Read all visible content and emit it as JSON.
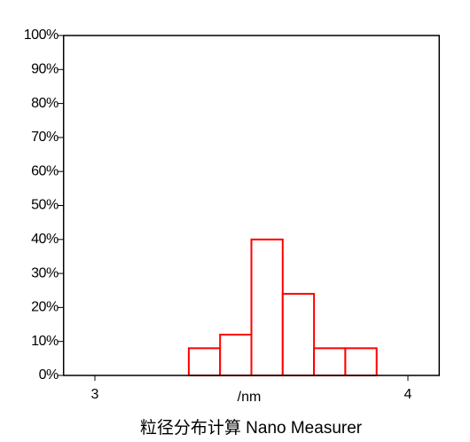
{
  "chart_data": {
    "type": "histogram",
    "x_label": "/nm",
    "caption": "粒径分布计算 Nano Measurer",
    "bins": [
      3.3,
      3.4,
      3.5,
      3.6,
      3.7,
      3.8,
      3.9
    ],
    "values": [
      8,
      12,
      40,
      24,
      8,
      8
    ],
    "color": "#ff0000",
    "xlim": [
      2.9,
      4.1
    ],
    "xticks": [
      3,
      4
    ],
    "ylim": [
      0,
      100
    ],
    "yticks": [
      {
        "value": 0,
        "label": "0%"
      },
      {
        "value": 10,
        "label": "10%"
      },
      {
        "value": 20,
        "label": "20%"
      },
      {
        "value": 30,
        "label": "30%"
      },
      {
        "value": 40,
        "label": "40%"
      },
      {
        "value": 50,
        "label": "50%"
      },
      {
        "value": 60,
        "label": "60%"
      },
      {
        "value": 70,
        "label": "70%"
      },
      {
        "value": 80,
        "label": "80%"
      },
      {
        "value": 90,
        "label": "90%"
      },
      {
        "value": 100,
        "label": "100%"
      }
    ],
    "grid": false
  }
}
